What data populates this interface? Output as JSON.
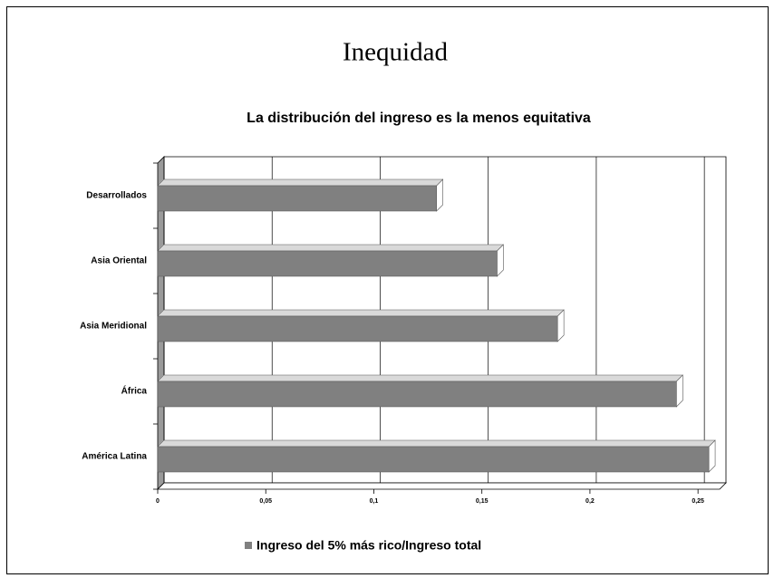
{
  "chart_data": {
    "type": "bar",
    "orientation": "horizontal",
    "slide_title": "Inequidad",
    "title": "La distribución del ingreso es la menos equitativa",
    "categories": [
      "Desarrollados",
      "Asia Oriental",
      "Asia Meridional",
      "África",
      "América Latina"
    ],
    "series": [
      {
        "name": "Ingreso del 5% más rico/Ingreso total",
        "color": "#808080",
        "values": [
          0.129,
          0.157,
          0.185,
          0.24,
          0.255
        ]
      }
    ],
    "xlim": [
      0,
      0.26
    ],
    "xticks": [
      0,
      {
        "value": 0.05,
        "label": "0,05"
      },
      {
        "value": 0.1,
        "label": "0,1"
      },
      {
        "value": 0.15,
        "label": "0,15"
      },
      {
        "value": 0.2,
        "label": "0,2"
      },
      {
        "value": 0.25,
        "label": "0,25"
      }
    ],
    "grid": true,
    "legend": "bottom"
  }
}
